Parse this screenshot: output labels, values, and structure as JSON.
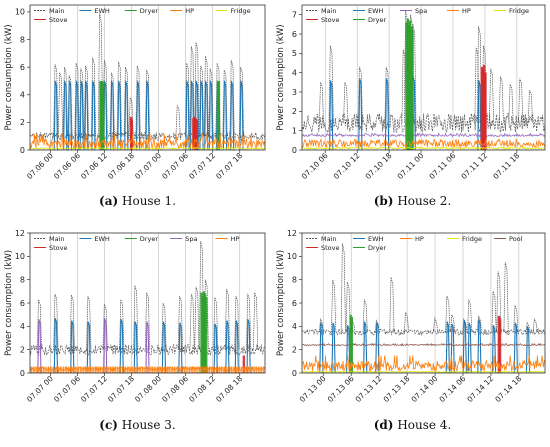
{
  "colors": {
    "Main": "#555555",
    "EWH": "#1f77b4",
    "Dryer": "#2ca02c",
    "HP": "#ff7f0e",
    "Fridge": "#e5e500",
    "Stove": "#d62728",
    "Spa": "#9467bd",
    "Pool": "#8c564b"
  },
  "chart_data": [
    {
      "type": "line",
      "caption_tag": "(a)",
      "caption_text": "House 1.",
      "ylabel": "Power consumption (kW)",
      "ylim": [
        0,
        10.5
      ],
      "yticks": [
        0,
        2,
        4,
        6,
        8,
        10
      ],
      "xticks": [
        "07.06 00",
        "07.06 06",
        "07.06 12",
        "07.06 18",
        "07.07 00",
        "07.07 06",
        "07.07 12",
        "07.07 18"
      ],
      "legend_rows": [
        [
          "Main",
          "EWH",
          "Dryer",
          "HP",
          "Fridge"
        ],
        [
          "Stove"
        ]
      ],
      "grid": "x",
      "series": [
        {
          "name": "Main",
          "style": "dashed",
          "base": 1.0,
          "noise": 0.3,
          "spikes": [
            [
              0.11,
              6.2
            ],
            [
              0.13,
              5.6
            ],
            [
              0.15,
              6.0
            ],
            [
              0.17,
              5.4
            ],
            [
              0.2,
              6.3
            ],
            [
              0.22,
              5.9
            ],
            [
              0.24,
              6.1
            ],
            [
              0.27,
              6.7
            ],
            [
              0.3,
              9.9
            ],
            [
              0.32,
              6.5
            ],
            [
              0.35,
              5.6
            ],
            [
              0.38,
              6.4
            ],
            [
              0.41,
              6.0
            ],
            [
              0.43,
              3.8
            ],
            [
              0.46,
              6.1
            ],
            [
              0.5,
              5.8
            ],
            [
              0.63,
              3.2
            ],
            [
              0.67,
              6.3
            ],
            [
              0.69,
              7.5
            ],
            [
              0.71,
              7.8
            ],
            [
              0.73,
              6.1
            ],
            [
              0.75,
              6.8
            ],
            [
              0.77,
              5.9
            ],
            [
              0.8,
              6.3
            ],
            [
              0.83,
              5.8
            ],
            [
              0.86,
              6.5
            ],
            [
              0.9,
              6.0
            ]
          ]
        },
        {
          "name": "EWH",
          "style": "solid",
          "base": 0.0,
          "noise": 0.0,
          "spikes": [
            [
              0.11,
              5.0
            ],
            [
              0.15,
              5.0
            ],
            [
              0.17,
              5.0
            ],
            [
              0.2,
              5.0
            ],
            [
              0.22,
              5.0
            ],
            [
              0.24,
              5.0
            ],
            [
              0.27,
              5.0
            ],
            [
              0.32,
              5.0
            ],
            [
              0.35,
              5.0
            ],
            [
              0.38,
              5.0
            ],
            [
              0.41,
              5.0
            ],
            [
              0.46,
              5.0
            ],
            [
              0.5,
              5.0
            ],
            [
              0.67,
              5.0
            ],
            [
              0.69,
              5.0
            ],
            [
              0.71,
              5.0
            ],
            [
              0.73,
              5.0
            ],
            [
              0.75,
              5.0
            ],
            [
              0.77,
              5.0
            ],
            [
              0.8,
              5.0
            ],
            [
              0.83,
              5.0
            ],
            [
              0.86,
              5.0
            ],
            [
              0.9,
              5.0
            ]
          ]
        },
        {
          "name": "Dryer",
          "style": "band",
          "base": 0.0,
          "noise": 0.0,
          "spikes": [
            [
              0.3,
              5.0
            ],
            [
              0.304,
              4.9
            ],
            [
              0.308,
              5.0
            ],
            [
              0.312,
              4.8
            ],
            [
              0.8,
              4.9
            ],
            [
              0.804,
              5.0
            ]
          ]
        },
        {
          "name": "Stove",
          "style": "band",
          "base": 0.0,
          "noise": 0.0,
          "spikes": [
            [
              0.43,
              2.4
            ],
            [
              0.433,
              2.2
            ],
            [
              0.695,
              2.3
            ],
            [
              0.7,
              2.4
            ],
            [
              0.705,
              2.3
            ],
            [
              0.71,
              2.2
            ]
          ]
        },
        {
          "name": "HP",
          "style": "solid",
          "base": 0.45,
          "noise": 0.35,
          "spikes": []
        },
        {
          "name": "Fridge",
          "style": "solid",
          "base": 0.12,
          "noise": 0.06,
          "spikes": []
        }
      ]
    },
    {
      "type": "line",
      "caption_tag": "(b)",
      "caption_text": "House 2.",
      "ylabel": "Power consumption (kW)",
      "ylim": [
        0,
        7.5
      ],
      "yticks": [
        0,
        1,
        2,
        3,
        4,
        5,
        6,
        7
      ],
      "xticks": [
        "07.10 06",
        "07.10 12",
        "07.10 18",
        "07.11 00",
        "07.11 06",
        "07.11 12",
        "07.11 18"
      ],
      "legend_rows": [
        [
          "Main",
          "EWH",
          "Spa",
          "HP",
          "Fridge"
        ],
        [
          "Stove",
          "Dryer"
        ]
      ],
      "grid": "x",
      "series": [
        {
          "name": "Main",
          "style": "dashed",
          "base": 1.4,
          "noise": 0.5,
          "spikes": [
            [
              0.08,
              3.5
            ],
            [
              0.12,
              5.4
            ],
            [
              0.18,
              3.5
            ],
            [
              0.24,
              4.3
            ],
            [
              0.35,
              4.3
            ],
            [
              0.42,
              5.2
            ],
            [
              0.43,
              7.2
            ],
            [
              0.44,
              6.8
            ],
            [
              0.45,
              7.0
            ],
            [
              0.46,
              6.5
            ],
            [
              0.72,
              5.3
            ],
            [
              0.73,
              6.4
            ],
            [
              0.75,
              5.4
            ],
            [
              0.78,
              4.2
            ],
            [
              0.82,
              3.8
            ],
            [
              0.86,
              3.4
            ],
            [
              0.9,
              3.7
            ],
            [
              0.94,
              3.1
            ]
          ]
        },
        {
          "name": "EWH",
          "style": "solid",
          "base": 0.0,
          "noise": 0.0,
          "spikes": [
            [
              0.12,
              3.6
            ],
            [
              0.24,
              3.7
            ],
            [
              0.35,
              3.7
            ],
            [
              0.46,
              3.8
            ],
            [
              0.73,
              3.6
            ],
            [
              0.75,
              3.6
            ]
          ]
        },
        {
          "name": "Spa",
          "style": "solid",
          "base": 0.75,
          "noise": 0.05,
          "spikes": []
        },
        {
          "name": "Dryer",
          "style": "band",
          "base": 0.0,
          "noise": 0.0,
          "spikes": [
            [
              0.43,
              6.6
            ],
            [
              0.435,
              6.8
            ],
            [
              0.44,
              6.5
            ],
            [
              0.445,
              6.7
            ],
            [
              0.45,
              6.4
            ],
            [
              0.455,
              6.2
            ]
          ]
        },
        {
          "name": "Stove",
          "style": "band",
          "base": 0.0,
          "noise": 0.0,
          "spikes": [
            [
              0.74,
              4.3
            ],
            [
              0.745,
              4.2
            ],
            [
              0.75,
              4.4
            ],
            [
              0.755,
              4.0
            ]
          ]
        },
        {
          "name": "HP",
          "style": "solid",
          "base": 0.35,
          "noise": 0.2,
          "spikes": []
        },
        {
          "name": "Fridge",
          "style": "solid",
          "base": 0.1,
          "noise": 0.05,
          "spikes": []
        }
      ]
    },
    {
      "type": "line",
      "caption_tag": "(c)",
      "caption_text": "House 3.",
      "ylabel": "Power consumption (kW)",
      "ylim": [
        0,
        12
      ],
      "yticks": [
        0,
        2,
        4,
        6,
        8,
        10,
        12
      ],
      "xticks": [
        "07.07 00",
        "07.07 06",
        "07.07 12",
        "07.07 18",
        "07.08 00",
        "07.08 06",
        "07.08 12",
        "07.08 18"
      ],
      "legend_rows": [
        [
          "Main",
          "EWH",
          "Dryer",
          "Spa",
          "HP"
        ],
        [
          "Stove"
        ]
      ],
      "grid": "x",
      "series": [
        {
          "name": "Main",
          "style": "dashed",
          "base": 2.0,
          "noise": 0.45,
          "spikes": [
            [
              0.04,
              6.3
            ],
            [
              0.11,
              6.8
            ],
            [
              0.18,
              6.7
            ],
            [
              0.25,
              6.6
            ],
            [
              0.32,
              5.9
            ],
            [
              0.39,
              6.3
            ],
            [
              0.45,
              7.5
            ],
            [
              0.5,
              6.9
            ],
            [
              0.57,
              6.0
            ],
            [
              0.64,
              6.6
            ],
            [
              0.69,
              6.8
            ],
            [
              0.71,
              7.4
            ],
            [
              0.73,
              11.3
            ],
            [
              0.75,
              8.0
            ],
            [
              0.79,
              6.5
            ],
            [
              0.84,
              7.2
            ],
            [
              0.88,
              6.6
            ],
            [
              0.93,
              6.8
            ],
            [
              0.96,
              6.9
            ]
          ]
        },
        {
          "name": "EWH",
          "style": "solid",
          "base": 0.0,
          "noise": 0.0,
          "spikes": [
            [
              0.11,
              4.7
            ],
            [
              0.18,
              4.5
            ],
            [
              0.25,
              4.4
            ],
            [
              0.39,
              4.6
            ],
            [
              0.45,
              4.4
            ],
            [
              0.57,
              4.4
            ],
            [
              0.64,
              4.3
            ],
            [
              0.79,
              4.2
            ],
            [
              0.84,
              4.5
            ],
            [
              0.88,
              4.5
            ],
            [
              0.93,
              4.6
            ]
          ]
        },
        {
          "name": "Spa",
          "style": "solid",
          "base": 0.0,
          "noise": 0.0,
          "spikes": [
            [
              0.04,
              4.6
            ],
            [
              0.32,
              4.7
            ],
            [
              0.5,
              4.4
            ]
          ]
        },
        {
          "name": "Dryer",
          "style": "band",
          "base": 0.0,
          "noise": 0.0,
          "spikes": [
            [
              0.73,
              6.9
            ],
            [
              0.735,
              6.6
            ],
            [
              0.74,
              7.0
            ],
            [
              0.745,
              6.8
            ],
            [
              0.75,
              6.5
            ]
          ]
        },
        {
          "name": "Stove",
          "style": "band",
          "base": 0.0,
          "noise": 0.0,
          "spikes": [
            [
              0.91,
              1.5
            ]
          ]
        },
        {
          "name": "HP",
          "style": "hatched",
          "base": 0.35,
          "noise": 0.15,
          "spikes": []
        }
      ]
    },
    {
      "type": "line",
      "caption_tag": "(d)",
      "caption_text": "House 4.",
      "ylabel": "Power consumption (kW)",
      "ylim": [
        0,
        12
      ],
      "yticks": [
        0,
        2,
        4,
        6,
        8,
        10,
        12
      ],
      "xticks": [
        "07.13 00",
        "07.13 06",
        "07.13 12",
        "07.13 18",
        "07.14 00",
        "07.14 06",
        "07.14 12",
        "07.14 18"
      ],
      "legend_rows": [
        [
          "Main",
          "EWH",
          "HP",
          "Fridge",
          "Pool"
        ],
        [
          "Stove",
          "Dryer"
        ]
      ],
      "grid": "x",
      "series": [
        {
          "name": "Main",
          "style": "dashed",
          "base": 3.5,
          "noise": 0.25,
          "spikes": [
            [
              0.08,
              4.6
            ],
            [
              0.13,
              8.0
            ],
            [
              0.17,
              11.1
            ],
            [
              0.19,
              7.8
            ],
            [
              0.21,
              4.5
            ],
            [
              0.26,
              6.3
            ],
            [
              0.31,
              4.5
            ],
            [
              0.37,
              8.2
            ],
            [
              0.43,
              5.2
            ],
            [
              0.55,
              4.7
            ],
            [
              0.6,
              6.6
            ],
            [
              0.62,
              5.0
            ],
            [
              0.67,
              4.6
            ],
            [
              0.69,
              6.3
            ],
            [
              0.73,
              4.9
            ],
            [
              0.79,
              7.0
            ],
            [
              0.81,
              8.7
            ],
            [
              0.84,
              9.5
            ],
            [
              0.88,
              5.8
            ],
            [
              0.93,
              4.3
            ],
            [
              0.96,
              4.6
            ]
          ]
        },
        {
          "name": "EWH",
          "style": "solid",
          "base": 0.0,
          "noise": 0.0,
          "spikes": [
            [
              0.08,
              4.3
            ],
            [
              0.13,
              4.3
            ],
            [
              0.19,
              4.1
            ],
            [
              0.26,
              4.4
            ],
            [
              0.31,
              4.3
            ],
            [
              0.6,
              4.4
            ],
            [
              0.62,
              4.2
            ],
            [
              0.67,
              4.5
            ],
            [
              0.69,
              4.3
            ],
            [
              0.73,
              4.6
            ],
            [
              0.79,
              4.1
            ],
            [
              0.88,
              4.3
            ],
            [
              0.93,
              4.0
            ]
          ]
        },
        {
          "name": "Pool",
          "style": "solid",
          "base": 2.4,
          "noise": 0.05,
          "spikes": []
        },
        {
          "name": "Stove",
          "style": "band",
          "base": 0.0,
          "noise": 0.0,
          "spikes": [
            [
              0.81,
              4.9
            ],
            [
              0.815,
              4.7
            ]
          ]
        },
        {
          "name": "Dryer",
          "style": "band",
          "base": 0.0,
          "noise": 0.0,
          "spikes": [
            [
              0.2,
              5.0
            ],
            [
              0.205,
              4.8
            ]
          ]
        },
        {
          "name": "HP",
          "style": "solid",
          "base": 0.6,
          "noise": 0.45,
          "spikes": []
        },
        {
          "name": "Fridge",
          "style": "solid",
          "base": 0.1,
          "noise": 0.05,
          "spikes": []
        }
      ]
    }
  ]
}
